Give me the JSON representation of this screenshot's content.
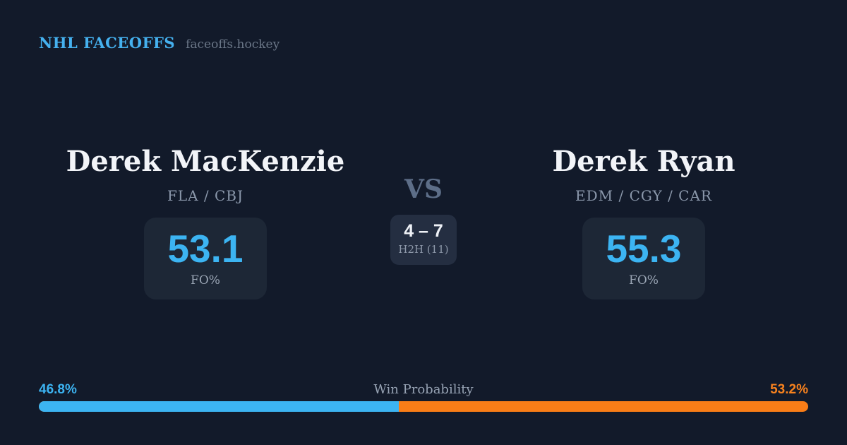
{
  "header": {
    "brand": "NHL FACEOFFS",
    "site": "faceoffs.hockey"
  },
  "matchup": {
    "left": {
      "name": "Derek MacKenzie",
      "teams": "FLA / CBJ",
      "stat_value": "53.1",
      "stat_label": "FO%"
    },
    "right": {
      "name": "Derek Ryan",
      "teams": "EDM / CGY / CAR",
      "stat_value": "55.3",
      "stat_label": "FO%"
    },
    "vs_label": "VS",
    "h2h": {
      "score": "4 – 7",
      "label": "H2H (11)"
    }
  },
  "win_probability": {
    "title": "Win Probability",
    "left_pct_label": "46.8%",
    "right_pct_label": "53.2%",
    "left_value": 46.8,
    "right_value": 53.2,
    "left_color": "#3cb4f2",
    "right_color": "#f97d17"
  },
  "colors": {
    "background": "#121a2a",
    "card_background": "#1d2736",
    "h2h_card_background": "#242e41",
    "accent_blue": "#3cb4f2",
    "accent_orange": "#f97d17",
    "brand_blue": "#45b1ef"
  }
}
